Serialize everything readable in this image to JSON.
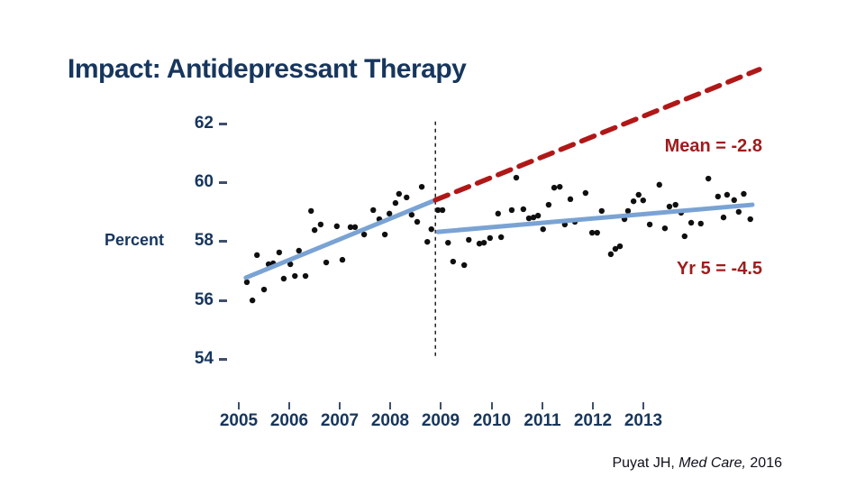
{
  "slide": {
    "title": "Impact: Antidepressant Therapy",
    "citation": {
      "author": "Puyat JH, ",
      "journal": "Med Care, ",
      "year": "2016"
    }
  },
  "chart_data": {
    "type": "scatter",
    "title": "Impact: Antidepressant Therapy",
    "xlabel": "",
    "ylabel": "Percent",
    "x_ticks": [
      "2005",
      "2006",
      "2007",
      "2008",
      "2009",
      "2010",
      "2011",
      "2012",
      "2013"
    ],
    "y_ticks": [
      "62",
      "60",
      "58",
      "56",
      "54"
    ],
    "y_range": [
      54,
      62
    ],
    "grid": "off",
    "legend": "none",
    "intervention_x": 2008.89,
    "annotations": {
      "mean": {
        "label": "Mean = -2.8"
      },
      "yr5": {
        "label": "Yr 5 = -4.5"
      }
    },
    "colors": {
      "point": "#0f0f0f",
      "trend": "#7aa3d4",
      "projection": "#b01818",
      "annotation_text": "#9e1c1c",
      "axis_text": "#17365d",
      "intervention_line": "#111111"
    },
    "series": {
      "observed_points": [
        [
          2005.16,
          56.61
        ],
        [
          2005.27,
          55.99
        ],
        [
          2005.36,
          57.53
        ],
        [
          2005.5,
          56.36
        ],
        [
          2005.59,
          57.22
        ],
        [
          2005.68,
          57.25
        ],
        [
          2005.8,
          57.62
        ],
        [
          2005.89,
          56.73
        ],
        [
          2006.02,
          57.22
        ],
        [
          2006.11,
          56.82
        ],
        [
          2006.19,
          57.68
        ],
        [
          2006.32,
          56.82
        ],
        [
          2006.43,
          59.03
        ],
        [
          2006.5,
          58.38
        ],
        [
          2006.62,
          58.57
        ],
        [
          2006.73,
          57.28
        ],
        [
          2006.94,
          58.51
        ],
        [
          2007.05,
          57.37
        ],
        [
          2007.21,
          58.48
        ],
        [
          2007.3,
          58.48
        ],
        [
          2007.48,
          58.23
        ],
        [
          2007.66,
          59.06
        ],
        [
          2007.78,
          58.75
        ],
        [
          2007.89,
          58.23
        ],
        [
          2007.98,
          58.94
        ],
        [
          2008.1,
          59.3
        ],
        [
          2008.17,
          59.61
        ],
        [
          2008.32,
          59.49
        ],
        [
          2008.42,
          58.9
        ],
        [
          2008.53,
          58.66
        ],
        [
          2008.62,
          59.85
        ],
        [
          2008.73,
          57.98
        ],
        [
          2008.81,
          58.41
        ],
        [
          2008.94,
          59.06
        ],
        [
          2009.03,
          59.06
        ],
        [
          2009.14,
          57.95
        ],
        [
          2009.24,
          57.31
        ],
        [
          2009.46,
          57.19
        ],
        [
          2009.55,
          58.05
        ],
        [
          2009.76,
          57.92
        ],
        [
          2009.85,
          57.95
        ],
        [
          2009.97,
          58.11
        ],
        [
          2010.13,
          58.94
        ],
        [
          2010.19,
          58.14
        ],
        [
          2010.4,
          59.06
        ],
        [
          2010.49,
          60.16
        ],
        [
          2010.63,
          59.09
        ],
        [
          2010.74,
          58.78
        ],
        [
          2010.83,
          58.81
        ],
        [
          2010.92,
          58.87
        ],
        [
          2011.02,
          58.41
        ],
        [
          2011.13,
          59.24
        ],
        [
          2011.24,
          59.82
        ],
        [
          2011.35,
          59.85
        ],
        [
          2011.45,
          58.57
        ],
        [
          2011.56,
          59.43
        ],
        [
          2011.65,
          58.66
        ],
        [
          2011.86,
          59.64
        ],
        [
          2011.99,
          58.29
        ],
        [
          2012.09,
          58.29
        ],
        [
          2012.18,
          59.03
        ],
        [
          2012.36,
          57.56
        ],
        [
          2012.45,
          57.74
        ],
        [
          2012.54,
          57.83
        ],
        [
          2012.63,
          58.75
        ],
        [
          2012.7,
          59.03
        ],
        [
          2012.81,
          59.36
        ],
        [
          2012.91,
          59.58
        ],
        [
          2013.0,
          59.39
        ],
        [
          2013.13,
          58.57
        ],
        [
          2013.32,
          59.92
        ],
        [
          2013.43,
          58.44
        ],
        [
          2013.52,
          59.18
        ],
        [
          2013.64,
          59.24
        ],
        [
          2013.75,
          58.97
        ],
        [
          2013.82,
          58.17
        ],
        [
          2013.95,
          58.63
        ],
        [
          2014.14,
          58.6
        ],
        [
          2014.29,
          60.13
        ],
        [
          2014.48,
          59.52
        ],
        [
          2014.59,
          58.81
        ],
        [
          2014.66,
          59.58
        ],
        [
          2014.8,
          59.4
        ],
        [
          2014.89,
          59.0
        ],
        [
          2014.99,
          59.61
        ],
        [
          2015.12,
          58.75
        ]
      ],
      "pre_trend": {
        "x": [
          2005.14,
          2008.89
        ],
        "y": [
          56.76,
          59.4
        ]
      },
      "post_trend": {
        "x": [
          2008.94,
          2015.16
        ],
        "y": [
          58.32,
          59.24
        ]
      },
      "projected_trend": {
        "x": [
          2008.89,
          2015.3
        ],
        "y": [
          59.4,
          63.84
        ]
      }
    }
  }
}
